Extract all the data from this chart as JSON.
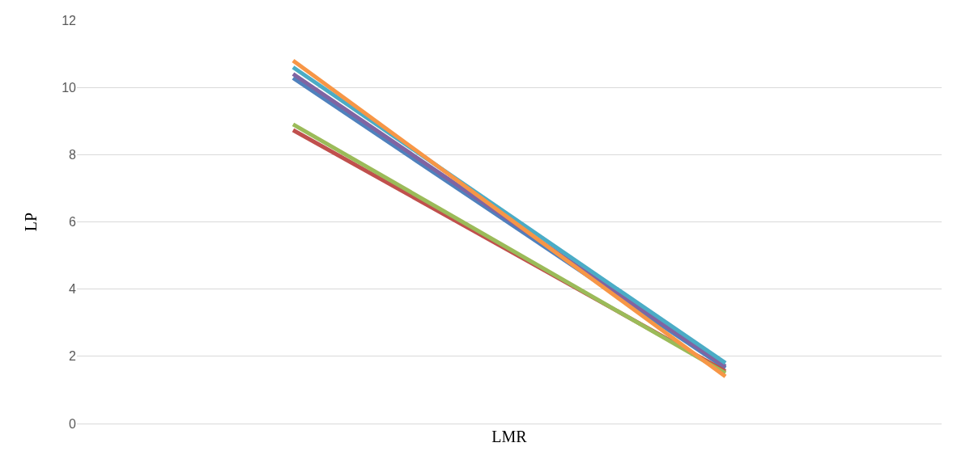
{
  "chart_data": {
    "type": "line",
    "xlabel": "LMR",
    "ylabel": "LP",
    "categories": [
      null,
      null
    ],
    "ylim": [
      0,
      12
    ],
    "yticks": [
      0,
      2,
      4,
      6,
      8,
      10,
      12
    ],
    "grid": "y",
    "marker": "none",
    "line_style": "solid",
    "series": [
      {
        "color": "#4f81bd",
        "values": [
          10.28,
          1.65
        ]
      },
      {
        "color": "#c0504d",
        "values": [
          8.73,
          1.55
        ]
      },
      {
        "color": "#9bbb59",
        "values": [
          8.9,
          1.5
        ]
      },
      {
        "color": "#8064a2",
        "values": [
          10.4,
          1.7
        ]
      },
      {
        "color": "#4bacc6",
        "values": [
          10.6,
          1.8
        ]
      },
      {
        "color": "#f79646",
        "values": [
          10.8,
          1.4
        ]
      }
    ]
  }
}
